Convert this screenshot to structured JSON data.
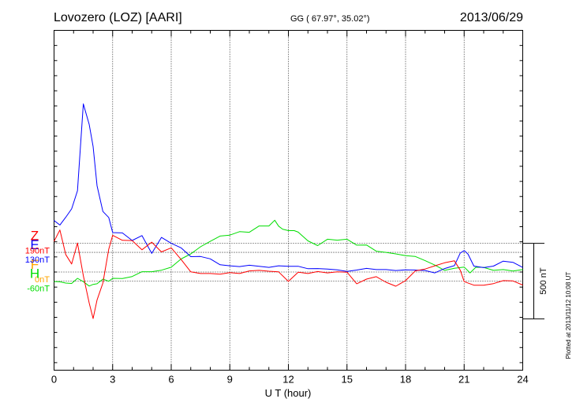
{
  "header": {
    "title": "Lovozero (LOZ)  [AARI]",
    "coords": "GG ( 67.97°,  35.02°)",
    "date": "2013/06/29"
  },
  "footer": {
    "plotted": "Plotted at 2013/11/12 10:08 UT"
  },
  "chart_data": {
    "type": "line",
    "title": "Lovozero (LOZ)  [AARI]",
    "xlabel": "U T (hour)",
    "xlim": [
      0,
      24
    ],
    "x_ticks": [
      0,
      3,
      6,
      9,
      12,
      15,
      18,
      21,
      24
    ],
    "ylim": [
      -650,
      1600
    ],
    "grid": true,
    "scale_bar_label": "500 nT",
    "scale_bar_nT": 500,
    "series": [
      {
        "name": "F",
        "baseline_label": "0nT",
        "baseline_nT": 0,
        "color": "#ffa500",
        "x": [],
        "y": []
      },
      {
        "name": "H",
        "baseline_label": "-60nT",
        "baseline_nT": -60,
        "color": "#00dd00",
        "x": [
          0,
          0.3,
          0.6,
          0.9,
          1.2,
          1.5,
          1.8,
          2.0,
          2.2,
          2.5,
          2.8,
          3.0,
          3.5,
          4.0,
          4.5,
          5.0,
          5.5,
          6.0,
          6.5,
          7.0,
          7.5,
          8.0,
          8.5,
          9.0,
          9.5,
          10.0,
          10.5,
          11.0,
          11.3,
          11.5,
          11.7,
          12.0,
          12.3,
          12.5,
          13.0,
          13.5,
          14.0,
          14.5,
          15.0,
          15.5,
          16.0,
          16.5,
          17.0,
          17.5,
          18.0,
          18.5,
          19.0,
          19.5,
          20.0,
          20.5,
          21.0,
          21.3,
          21.6,
          22.0,
          22.5,
          23.0,
          23.5,
          24.0
        ],
        "y": [
          -63,
          -65,
          -73,
          -76,
          -42,
          -64,
          -93,
          -82,
          -78,
          -47,
          -61,
          -42,
          -43,
          -30,
          2,
          2,
          12,
          32,
          86,
          120,
          167,
          203,
          238,
          244,
          267,
          263,
          305,
          305,
          343,
          304,
          284,
          274,
          274,
          264,
          206,
          175,
          217,
          211,
          217,
          178,
          179,
          138,
          130,
          120,
          108,
          103,
          75,
          46,
          11,
          25,
          33,
          -6,
          32,
          31,
          11,
          16,
          6,
          16
        ]
      },
      {
        "name": "E",
        "baseline_label": "130nT",
        "baseline_nT": 130,
        "color": "#0000ff",
        "x": [
          0,
          0.3,
          0.6,
          0.9,
          1.2,
          1.5,
          1.8,
          2.0,
          2.2,
          2.5,
          2.8,
          3.0,
          3.5,
          4.0,
          4.5,
          5.0,
          5.5,
          6.0,
          6.5,
          7.0,
          7.5,
          8.0,
          8.5,
          9.0,
          9.5,
          10.0,
          10.5,
          11.0,
          11.5,
          12.0,
          12.5,
          13.0,
          13.5,
          14.0,
          14.5,
          15.0,
          15.5,
          16.0,
          16.5,
          17.0,
          17.5,
          18.0,
          18.5,
          19.0,
          19.5,
          20.0,
          20.5,
          20.8,
          21.0,
          21.2,
          21.5,
          22.0,
          22.5,
          23.0,
          23.5,
          24.0
        ],
        "y": [
          341,
          311,
          362,
          418,
          538,
          1113,
          978,
          831,
          571,
          401,
          361,
          261,
          259,
          209,
          241,
          123,
          229,
          190,
          160,
          102,
          103,
          87,
          48,
          41,
          36,
          45,
          38,
          31,
          41,
          38,
          38,
          22,
          23,
          19,
          14,
          4,
          13,
          24,
          16,
          16,
          10,
          14,
          13,
          10,
          -6,
          23,
          42,
          126,
          142,
          118,
          39,
          29,
          39,
          72,
          64,
          30
        ]
      },
      {
        "name": "Z",
        "baseline_label": "190nT",
        "baseline_nT": 190,
        "color": "#ff0000",
        "x": [
          0,
          0.3,
          0.6,
          0.9,
          1.2,
          1.5,
          1.8,
          2.0,
          2.2,
          2.5,
          2.8,
          3.0,
          3.5,
          4.0,
          4.5,
          5.0,
          5.5,
          6.0,
          6.5,
          7.0,
          7.5,
          8.0,
          8.5,
          9.0,
          9.5,
          10.0,
          10.5,
          11.0,
          11.5,
          12.0,
          12.5,
          13.0,
          13.5,
          14.0,
          14.5,
          15.0,
          15.5,
          16.0,
          16.5,
          17.0,
          17.5,
          18.0,
          18.5,
          19.0,
          19.5,
          20.0,
          20.5,
          20.8,
          21.0,
          21.5,
          22.0,
          22.5,
          23.0,
          23.5,
          24.0
        ],
        "y": [
          203,
          278,
          116,
          53,
          192,
          -24,
          -204,
          -308,
          -185,
          -73,
          151,
          243,
          210,
          208,
          147,
          198,
          133,
          160,
          84,
          1,
          -10,
          -10,
          -14,
          -4,
          -10,
          7,
          11,
          5,
          1,
          -62,
          -1,
          -10,
          3,
          -6,
          1,
          -1,
          -78,
          -47,
          -31,
          -68,
          -94,
          -57,
          8,
          20,
          41,
          61,
          74,
          12,
          -64,
          -87,
          -87,
          -77,
          -57,
          -59,
          -86
        ]
      }
    ]
  }
}
